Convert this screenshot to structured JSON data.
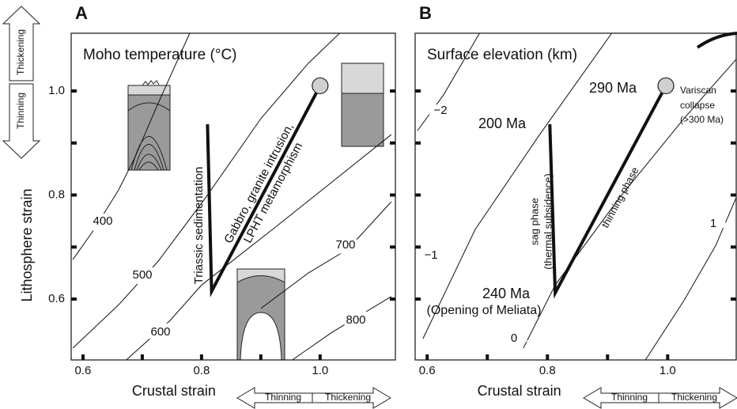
{
  "chart_data": [
    {
      "type": "contour",
      "title": "A",
      "subtitle": "Moho temperature (°C)",
      "x_label": "Crustal strain",
      "y_label": "Lithosphere strain",
      "x_arrow_labels": [
        "Thinning",
        "Thickening"
      ],
      "y_arrow_labels": [
        "Thickening",
        "Thinning"
      ],
      "xlim": [
        0.58,
        1.127
      ],
      "ylim": [
        0.483,
        1.111
      ],
      "xticks": [
        0.6,
        0.8,
        {
          "value": 1.0,
          "label": "1.0"
        }
      ],
      "xminor": [
        0.7,
        0.9
      ],
      "yticks": [
        0.6,
        0.8,
        {
          "value": 1.0,
          "label": "1.0"
        }
      ],
      "yminor": [
        0.7,
        0.9
      ],
      "contours": [
        {
          "level": 400,
          "x": [
            0.583,
            0.617,
            0.66,
            0.687,
            0.727,
            0.78
          ],
          "y": [
            0.676,
            0.731,
            0.81,
            0.871,
            0.977,
            1.111
          ]
        },
        {
          "level": 500,
          "x": [
            0.583,
            0.66,
            0.727,
            0.807,
            0.9,
            0.98,
            1.033
          ],
          "y": [
            0.506,
            0.589,
            0.673,
            0.795,
            0.947,
            1.053,
            1.111
          ]
        },
        {
          "level": 600,
          "x": [
            0.673,
            0.747,
            0.8,
            0.92,
            1.02,
            1.12
          ],
          "y": [
            0.483,
            0.559,
            0.627,
            0.734,
            0.825,
            0.916
          ]
        },
        {
          "level": 700,
          "x": [
            0.9,
            0.98,
            1.047,
            1.12
          ],
          "y": [
            0.582,
            0.65,
            0.696,
            0.787
          ]
        },
        {
          "level": 800,
          "x": [
            0.953,
            1.02,
            1.12
          ],
          "y": [
            0.483,
            0.536,
            0.605
          ]
        }
      ],
      "path": {
        "x": [
          0.81,
          0.817,
          1.0
        ],
        "y": [
          0.936,
          0.615,
          1.01
        ]
      },
      "annotations": [
        "Triassic sedimentation",
        "Gabbro, granite intrusion,",
        "LPHT metamorphism"
      ]
    },
    {
      "type": "contour",
      "title": "B",
      "subtitle": "Surface elevation (km)",
      "x_label": "Crustal strain",
      "x_arrow_labels": [
        "Thinning",
        "Thickening"
      ],
      "xlim": [
        0.58,
        1.114
      ],
      "ylim": [
        0.483,
        1.111
      ],
      "xticks": [
        0.6,
        0.8,
        {
          "value": 1.0,
          "label": "1.0"
        }
      ],
      "xminor": [
        0.7,
        0.9
      ],
      "yticks": [
        0.6,
        0.8,
        1.0
      ],
      "yminor": [
        0.7,
        0.9
      ],
      "contours": [
        {
          "level": {
            "value": -2,
            "label": "−2"
          },
          "x": [
            0.584,
            0.627,
            0.687
          ],
          "y": [
            0.924,
            0.992,
            1.111
          ]
        },
        {
          "level": {
            "value": -1,
            "label": "−1"
          },
          "x": [
            0.593,
            0.68,
            0.787,
            0.867,
            0.907
          ],
          "y": [
            0.524,
            0.734,
            0.916,
            1.046,
            1.111
          ]
        },
        {
          "level": 0,
          "x": [
            0.76,
            0.813,
            0.92,
            1.027,
            1.114
          ],
          "y": [
            0.506,
            0.627,
            0.795,
            0.947,
            1.061
          ]
        },
        {
          "level": 1,
          "x": [
            0.963,
            1.027,
            1.08,
            1.114
          ],
          "y": [
            0.483,
            0.597,
            0.703,
            0.795
          ]
        }
      ],
      "path": {
        "x": [
          0.804,
          0.813,
          0.997
        ],
        "y": [
          0.936,
          0.612,
          1.01
        ]
      },
      "annotations": [
        "200 Ma",
        "290 Ma",
        "Variscan",
        "collapse",
        "(>300 Ma)",
        "sag phase",
        "(thermal subsidence)",
        "thinning phase",
        "240 Ma",
        "(Opening of Meliata)"
      ]
    }
  ]
}
